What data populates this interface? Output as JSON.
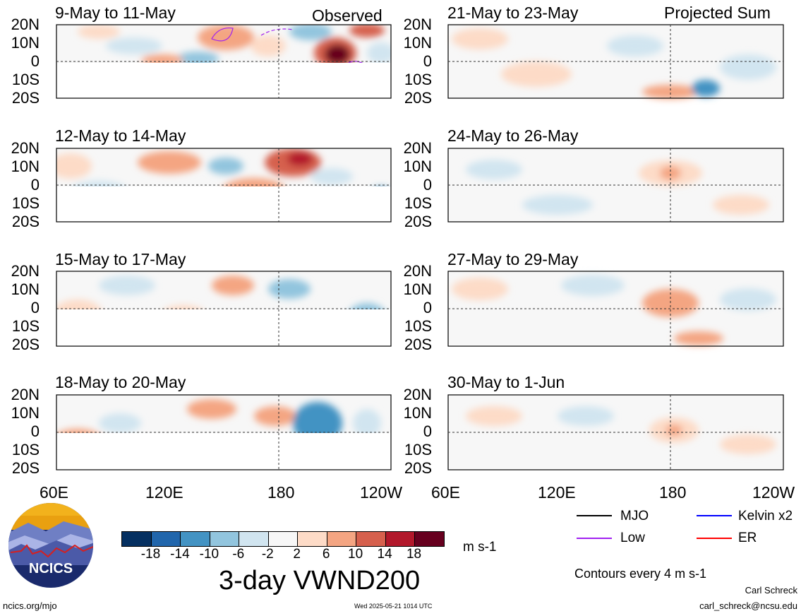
{
  "panels_left": [
    {
      "title": "9-May to 11-May",
      "tag": "Observed"
    },
    {
      "title": "12-May to 14-May",
      "tag": ""
    },
    {
      "title": "15-May to 17-May",
      "tag": ""
    },
    {
      "title": "18-May to 20-May",
      "tag": ""
    }
  ],
  "panels_right": [
    {
      "title": "21-May to 23-May",
      "tag": "Projected Sum"
    },
    {
      "title": "24-May to 26-May",
      "tag": ""
    },
    {
      "title": "27-May to 29-May",
      "tag": ""
    },
    {
      "title": "30-May to 1-Jun",
      "tag": ""
    }
  ],
  "lat_labels": [
    "20N",
    "10N",
    "0",
    "10S",
    "20S"
  ],
  "lon_labels": [
    "60E",
    "120E",
    "180",
    "120W"
  ],
  "colorbar": {
    "ticks": [
      "-18",
      "-14",
      "-10",
      "-6",
      "-2",
      "2",
      "6",
      "10",
      "14",
      "18"
    ],
    "colors": [
      "#053061",
      "#2166ac",
      "#4393c3",
      "#92c5de",
      "#d1e5f0",
      "#f7f7f7",
      "#fddbc7",
      "#f4a582",
      "#d6604d",
      "#b2182b",
      "#67001f"
    ],
    "units": "m s-1"
  },
  "main_title": "3-day VWND200",
  "legend": {
    "items": [
      {
        "label": "MJO",
        "color": "#000000"
      },
      {
        "label": "Kelvin x2",
        "color": "#0000ff"
      },
      {
        "label": "Low",
        "color": "#a020f0"
      },
      {
        "label": "ER",
        "color": "#ff0000"
      }
    ],
    "contours_note": "Contours every 4 m s-1"
  },
  "logo": {
    "text": "NCICS"
  },
  "footer": {
    "url": "ncics.org/mjo",
    "timestamp": "Wed 2025-05-21 1014 UTC",
    "author": "Carl Schreck",
    "email": "carl_schreck@ncsu.edu"
  }
}
